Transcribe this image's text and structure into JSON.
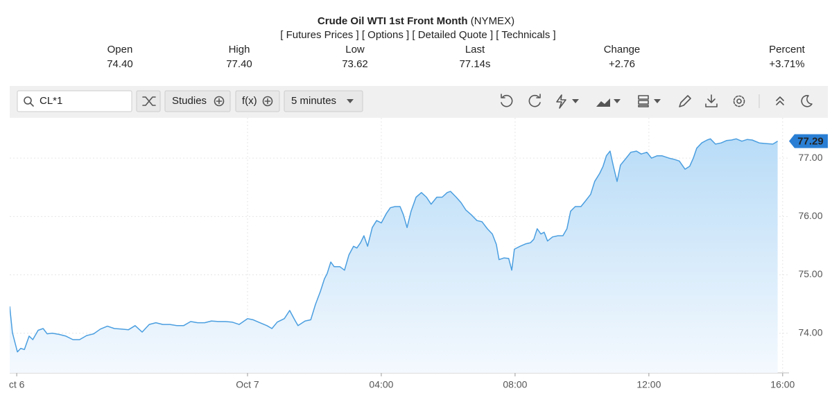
{
  "header": {
    "title": "Crude Oil WTI 1st Front Month",
    "exchange": "(NYMEX)",
    "links": [
      "[ Futures Prices ]",
      "[ Options ]",
      "[ Detailed Quote ]",
      "[ Technicals ]"
    ]
  },
  "quote": [
    {
      "label": "Open",
      "value": "74.40"
    },
    {
      "label": "High",
      "value": "77.40"
    },
    {
      "label": "Low",
      "value": "73.62"
    },
    {
      "label": "Last",
      "value": "77.14s"
    },
    {
      "label": "Change",
      "value": "+2.76"
    },
    {
      "label": "Percent",
      "value": "+3.71%"
    }
  ],
  "toolbar": {
    "symbol": "CL*1",
    "studies": "Studies",
    "fx": "f(x)",
    "interval": "5 minutes"
  },
  "chart_data": {
    "type": "area",
    "color": "#4a9ee0",
    "grid": true,
    "last_price": 77.29,
    "xlim": [
      -7.11,
      16.19
    ],
    "ylim": [
      73.32,
      77.69
    ],
    "xticks": [
      {
        "value": -6.9,
        "label": "ct 6"
      },
      {
        "value": 0,
        "label": "Oct 7"
      },
      {
        "value": 4,
        "label": "04:00"
      },
      {
        "value": 8,
        "label": "08:00"
      },
      {
        "value": 12,
        "label": "12:00"
      },
      {
        "value": 16,
        "label": "16:00"
      }
    ],
    "yticks": [
      {
        "value": 74,
        "label": "74.00"
      },
      {
        "value": 75,
        "label": "75.00"
      },
      {
        "value": 76,
        "label": "76.00"
      },
      {
        "value": 77,
        "label": "77.00"
      }
    ],
    "x": [
      -7.11,
      -7.03,
      -6.88,
      -6.78,
      -6.67,
      -6.53,
      -6.42,
      -6.26,
      -6.11,
      -5.99,
      -5.84,
      -5.64,
      -5.43,
      -5.22,
      -5.02,
      -4.81,
      -4.6,
      -4.4,
      -4.19,
      -3.98,
      -3.77,
      -3.56,
      -3.36,
      -3.15,
      -2.94,
      -2.74,
      -2.53,
      -2.32,
      -2.11,
      -1.91,
      -1.7,
      -1.49,
      -1.28,
      -1.08,
      -0.87,
      -0.66,
      -0.46,
      -0.25,
      0,
      0.17,
      0.37,
      0.58,
      0.73,
      0.89,
      1.1,
      1.26,
      1.41,
      1.51,
      1.72,
      1.89,
      2.03,
      2.18,
      2.3,
      2.38,
      2.49,
      2.59,
      2.76,
      2.9,
      3.03,
      3.17,
      3.27,
      3.38,
      3.48,
      3.59,
      3.73,
      3.86,
      4,
      4.15,
      4.27,
      4.41,
      4.56,
      4.66,
      4.77,
      4.89,
      5.04,
      5.2,
      5.35,
      5.49,
      5.66,
      5.82,
      5.97,
      6.07,
      6.24,
      6.38,
      6.53,
      6.69,
      6.86,
      7.01,
      7.17,
      7.32,
      7.44,
      7.52,
      7.67,
      7.81,
      7.9,
      7.98,
      8.15,
      8.31,
      8.46,
      8.56,
      8.66,
      8.77,
      8.87,
      8.97,
      9.12,
      9.28,
      9.43,
      9.55,
      9.66,
      9.8,
      9.97,
      10.11,
      10.26,
      10.38,
      10.53,
      10.63,
      10.73,
      10.84,
      10.94,
      11.05,
      11.15,
      11.32,
      11.46,
      11.63,
      11.77,
      11.94,
      12.08,
      12.25,
      12.39,
      12.6,
      12.75,
      12.91,
      13.08,
      13.22,
      13.33,
      13.43,
      13.58,
      13.74,
      13.84,
      13.99,
      14.16,
      14.32,
      14.47,
      14.61,
      14.78,
      14.94,
      15.09,
      15.3,
      15.5,
      15.71,
      15.85
    ],
    "values": [
      74.46,
      74.01,
      73.68,
      73.74,
      73.72,
      73.95,
      73.89,
      74.05,
      74.08,
      73.99,
      74,
      73.98,
      73.95,
      73.89,
      73.89,
      73.96,
      73.99,
      74.07,
      74.12,
      74.08,
      74.07,
      74.06,
      74.13,
      74.02,
      74.15,
      74.18,
      74.15,
      74.15,
      74.13,
      74.13,
      74.2,
      74.18,
      74.18,
      74.21,
      74.2,
      74.2,
      74.19,
      74.15,
      74.25,
      74.23,
      74.18,
      74.13,
      74.08,
      74.19,
      74.25,
      74.39,
      74.23,
      74.13,
      74.21,
      74.23,
      74.49,
      74.72,
      74.93,
      75.02,
      75.22,
      75.14,
      75.14,
      75.08,
      75.34,
      75.49,
      75.46,
      75.55,
      75.67,
      75.49,
      75.81,
      75.93,
      75.89,
      76.05,
      76.15,
      76.17,
      76.17,
      76.03,
      75.81,
      76.09,
      76.33,
      76.41,
      76.33,
      76.21,
      76.33,
      76.33,
      76.41,
      76.43,
      76.33,
      76.24,
      76.11,
      76.03,
      75.93,
      75.91,
      75.79,
      75.7,
      75.52,
      75.26,
      75.29,
      75.28,
      75.08,
      75.44,
      75.49,
      75.53,
      75.55,
      75.61,
      75.79,
      75.7,
      75.73,
      75.58,
      75.65,
      75.67,
      75.67,
      75.79,
      76.09,
      76.17,
      76.17,
      76.27,
      76.38,
      76.6,
      76.74,
      76.86,
      77.04,
      77.12,
      76.86,
      76.6,
      76.88,
      77,
      77.1,
      77.12,
      77.07,
      77.1,
      77,
      77.04,
      77.04,
      77,
      76.98,
      76.95,
      76.81,
      76.86,
      77,
      77.17,
      77.26,
      77.31,
      77.33,
      77.24,
      77.26,
      77.3,
      77.31,
      77.33,
      77.29,
      77.32,
      77.31,
      77.26,
      77.25,
      77.24,
      77.29
    ]
  }
}
